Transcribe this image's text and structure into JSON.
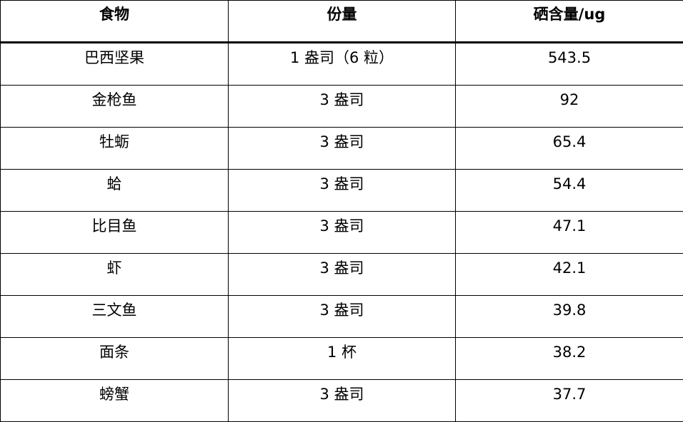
{
  "table": {
    "headers": [
      "食物",
      "份量",
      "硒含量/ug"
    ],
    "rows": [
      [
        "巴西坚果",
        "1 盎司（6 粒）",
        "543.5"
      ],
      [
        "金枪鱼",
        "3 盎司",
        "92"
      ],
      [
        "牡蛎",
        "3 盎司",
        "65.4"
      ],
      [
        "蛤",
        "3 盎司",
        "54.4"
      ],
      [
        "比目鱼",
        "3 盎司",
        "47.1"
      ],
      [
        "虾",
        "3 盎司",
        "42.1"
      ],
      [
        "三文鱼",
        "3 盎司",
        "39.8"
      ],
      [
        "面条",
        "1 杯",
        "38.2"
      ],
      [
        "螃蟹",
        "3 盎司",
        "37.7"
      ]
    ]
  }
}
